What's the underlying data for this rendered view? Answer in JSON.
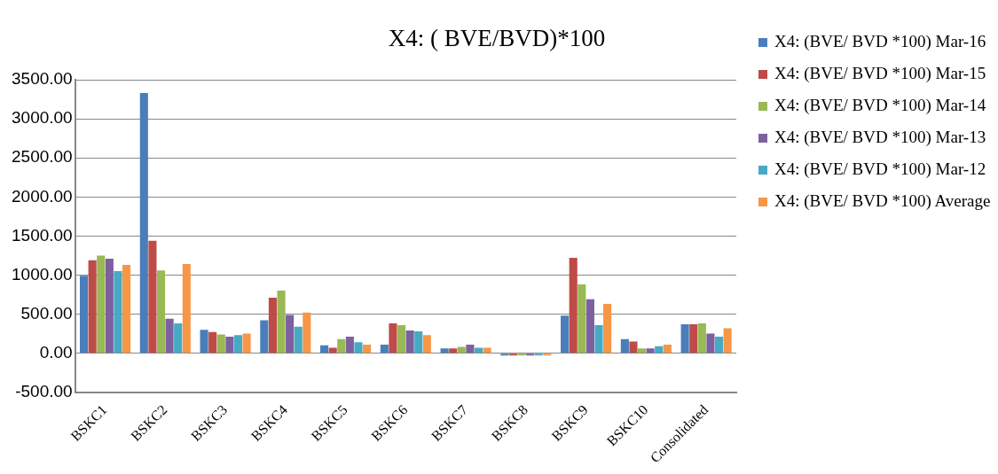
{
  "chart_data": {
    "type": "bar",
    "title": "X4: ( BVE/BVD)*100",
    "categories": [
      "BSKC1",
      "BSKC2",
      "BSKC3",
      "BSKC4",
      "BSKC5",
      "BSKC6",
      "BSKC7",
      "BSKC8",
      "BSKC9",
      "BSKC10",
      "Consolidated"
    ],
    "series": [
      {
        "name": "X4: (BVE/ BVD *100) Mar-16",
        "color": "#4a7ebb",
        "values": [
          990,
          3330,
          300,
          420,
          100,
          110,
          60,
          -30,
          480,
          180,
          370
        ]
      },
      {
        "name": "X4: (BVE/ BVD *100) Mar-15",
        "color": "#be4b48",
        "values": [
          1190,
          1440,
          270,
          710,
          70,
          380,
          60,
          -30,
          1220,
          150,
          370
        ]
      },
      {
        "name": "X4: (BVE/ BVD *100) Mar-14",
        "color": "#98b954",
        "values": [
          1250,
          1060,
          240,
          800,
          180,
          360,
          80,
          -30,
          880,
          60,
          380
        ]
      },
      {
        "name": "X4: (BVE/ BVD *100) Mar-13",
        "color": "#7d60a0",
        "values": [
          1210,
          440,
          210,
          490,
          210,
          290,
          110,
          -30,
          690,
          60,
          250
        ]
      },
      {
        "name": "X4: (BVE/ BVD *100) Mar-12",
        "color": "#46aac5",
        "values": [
          1050,
          380,
          230,
          340,
          140,
          280,
          70,
          -30,
          360,
          90,
          210
        ]
      },
      {
        "name": "X4: (BVE/ BVD *100) Average",
        "color": "#f79646",
        "values": [
          1130,
          1140,
          250,
          520,
          110,
          230,
          70,
          -30,
          630,
          110,
          320
        ]
      }
    ],
    "ylim": [
      -500,
      3500
    ],
    "yticks": [
      {
        "value": -500,
        "label": "-500.00"
      },
      {
        "value": 0,
        "label": "0.00"
      },
      {
        "value": 500,
        "label": "500.00"
      },
      {
        "value": 1000,
        "label": "1000.00"
      },
      {
        "value": 1500,
        "label": "1500.00"
      },
      {
        "value": 2000,
        "label": "2000.00"
      },
      {
        "value": 2500,
        "label": "2500.00"
      },
      {
        "value": 3000,
        "label": "3000.00"
      },
      {
        "value": 3500,
        "label": "3500.00"
      }
    ],
    "grid": "y",
    "legend": "right"
  }
}
